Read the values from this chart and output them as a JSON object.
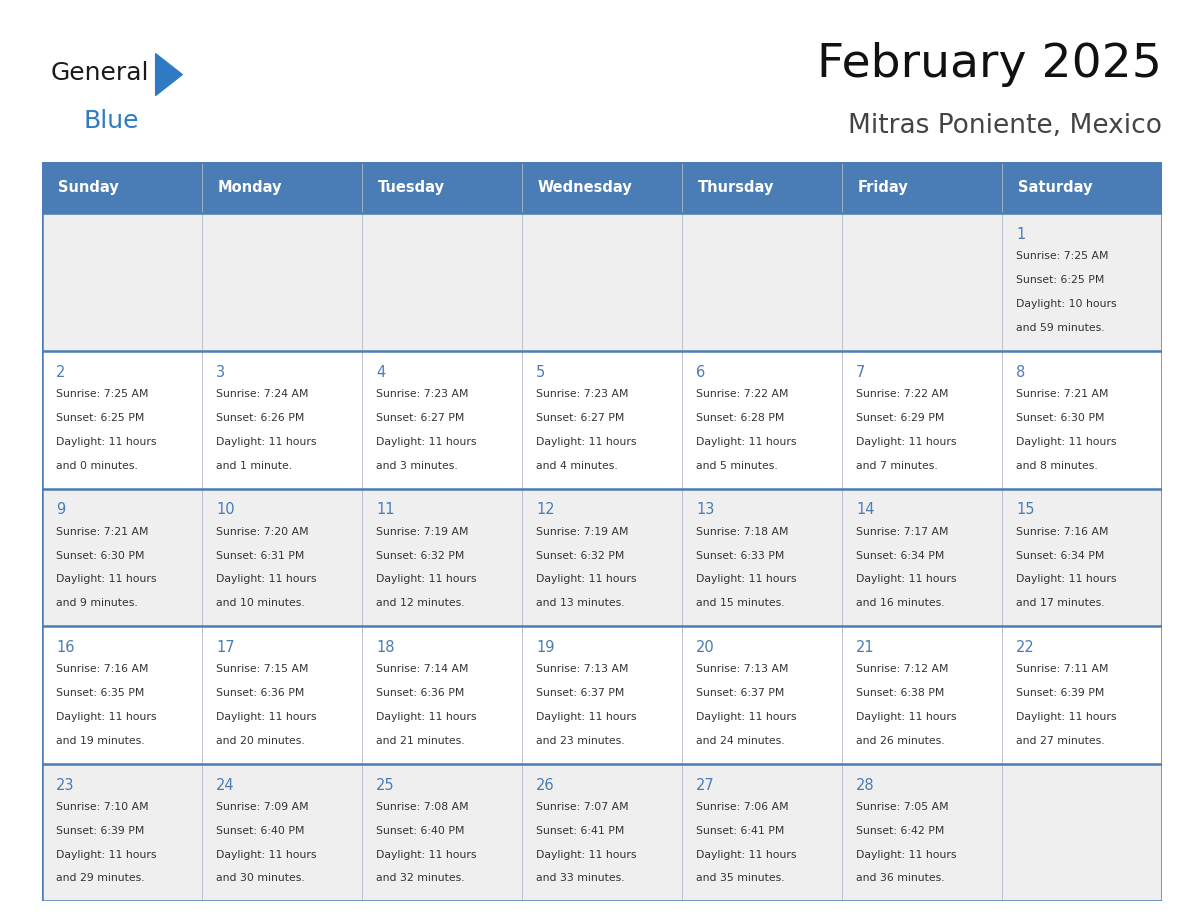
{
  "title": "February 2025",
  "subtitle": "Mitras Poniente, Mexico",
  "days_of_week": [
    "Sunday",
    "Monday",
    "Tuesday",
    "Wednesday",
    "Thursday",
    "Friday",
    "Saturday"
  ],
  "header_bg": "#4a7cb5",
  "header_text": "#ffffff",
  "row_bg_odd": "#efefef",
  "row_bg_even": "#ffffff",
  "border_color": "#4a7cb5",
  "day_num_color": "#4a7cb5",
  "cell_text_color": "#333333",
  "logo_general_color": "#1a1a1a",
  "logo_blue_color": "#2e7bc4",
  "calendar_data": [
    [
      null,
      null,
      null,
      null,
      null,
      null,
      {
        "day": "1",
        "sunrise": "7:25 AM",
        "sunset": "6:25 PM",
        "daylight_h": "10",
        "daylight_m": "59 minutes"
      }
    ],
    [
      {
        "day": "2",
        "sunrise": "7:25 AM",
        "sunset": "6:25 PM",
        "daylight_h": "11",
        "daylight_m": "0 minutes"
      },
      {
        "day": "3",
        "sunrise": "7:24 AM",
        "sunset": "6:26 PM",
        "daylight_h": "11",
        "daylight_m": "1 minute"
      },
      {
        "day": "4",
        "sunrise": "7:23 AM",
        "sunset": "6:27 PM",
        "daylight_h": "11",
        "daylight_m": "3 minutes"
      },
      {
        "day": "5",
        "sunrise": "7:23 AM",
        "sunset": "6:27 PM",
        "daylight_h": "11",
        "daylight_m": "4 minutes"
      },
      {
        "day": "6",
        "sunrise": "7:22 AM",
        "sunset": "6:28 PM",
        "daylight_h": "11",
        "daylight_m": "5 minutes"
      },
      {
        "day": "7",
        "sunrise": "7:22 AM",
        "sunset": "6:29 PM",
        "daylight_h": "11",
        "daylight_m": "7 minutes"
      },
      {
        "day": "8",
        "sunrise": "7:21 AM",
        "sunset": "6:30 PM",
        "daylight_h": "11",
        "daylight_m": "8 minutes"
      }
    ],
    [
      {
        "day": "9",
        "sunrise": "7:21 AM",
        "sunset": "6:30 PM",
        "daylight_h": "11",
        "daylight_m": "9 minutes"
      },
      {
        "day": "10",
        "sunrise": "7:20 AM",
        "sunset": "6:31 PM",
        "daylight_h": "11",
        "daylight_m": "10 minutes"
      },
      {
        "day": "11",
        "sunrise": "7:19 AM",
        "sunset": "6:32 PM",
        "daylight_h": "11",
        "daylight_m": "12 minutes"
      },
      {
        "day": "12",
        "sunrise": "7:19 AM",
        "sunset": "6:32 PM",
        "daylight_h": "11",
        "daylight_m": "13 minutes"
      },
      {
        "day": "13",
        "sunrise": "7:18 AM",
        "sunset": "6:33 PM",
        "daylight_h": "11",
        "daylight_m": "15 minutes"
      },
      {
        "day": "14",
        "sunrise": "7:17 AM",
        "sunset": "6:34 PM",
        "daylight_h": "11",
        "daylight_m": "16 minutes"
      },
      {
        "day": "15",
        "sunrise": "7:16 AM",
        "sunset": "6:34 PM",
        "daylight_h": "11",
        "daylight_m": "17 minutes"
      }
    ],
    [
      {
        "day": "16",
        "sunrise": "7:16 AM",
        "sunset": "6:35 PM",
        "daylight_h": "11",
        "daylight_m": "19 minutes"
      },
      {
        "day": "17",
        "sunrise": "7:15 AM",
        "sunset": "6:36 PM",
        "daylight_h": "11",
        "daylight_m": "20 minutes"
      },
      {
        "day": "18",
        "sunrise": "7:14 AM",
        "sunset": "6:36 PM",
        "daylight_h": "11",
        "daylight_m": "21 minutes"
      },
      {
        "day": "19",
        "sunrise": "7:13 AM",
        "sunset": "6:37 PM",
        "daylight_h": "11",
        "daylight_m": "23 minutes"
      },
      {
        "day": "20",
        "sunrise": "7:13 AM",
        "sunset": "6:37 PM",
        "daylight_h": "11",
        "daylight_m": "24 minutes"
      },
      {
        "day": "21",
        "sunrise": "7:12 AM",
        "sunset": "6:38 PM",
        "daylight_h": "11",
        "daylight_m": "26 minutes"
      },
      {
        "day": "22",
        "sunrise": "7:11 AM",
        "sunset": "6:39 PM",
        "daylight_h": "11",
        "daylight_m": "27 minutes"
      }
    ],
    [
      {
        "day": "23",
        "sunrise": "7:10 AM",
        "sunset": "6:39 PM",
        "daylight_h": "11",
        "daylight_m": "29 minutes"
      },
      {
        "day": "24",
        "sunrise": "7:09 AM",
        "sunset": "6:40 PM",
        "daylight_h": "11",
        "daylight_m": "30 minutes"
      },
      {
        "day": "25",
        "sunrise": "7:08 AM",
        "sunset": "6:40 PM",
        "daylight_h": "11",
        "daylight_m": "32 minutes"
      },
      {
        "day": "26",
        "sunrise": "7:07 AM",
        "sunset": "6:41 PM",
        "daylight_h": "11",
        "daylight_m": "33 minutes"
      },
      {
        "day": "27",
        "sunrise": "7:06 AM",
        "sunset": "6:41 PM",
        "daylight_h": "11",
        "daylight_m": "35 minutes"
      },
      {
        "day": "28",
        "sunrise": "7:05 AM",
        "sunset": "6:42 PM",
        "daylight_h": "11",
        "daylight_m": "36 minutes"
      },
      null
    ]
  ]
}
